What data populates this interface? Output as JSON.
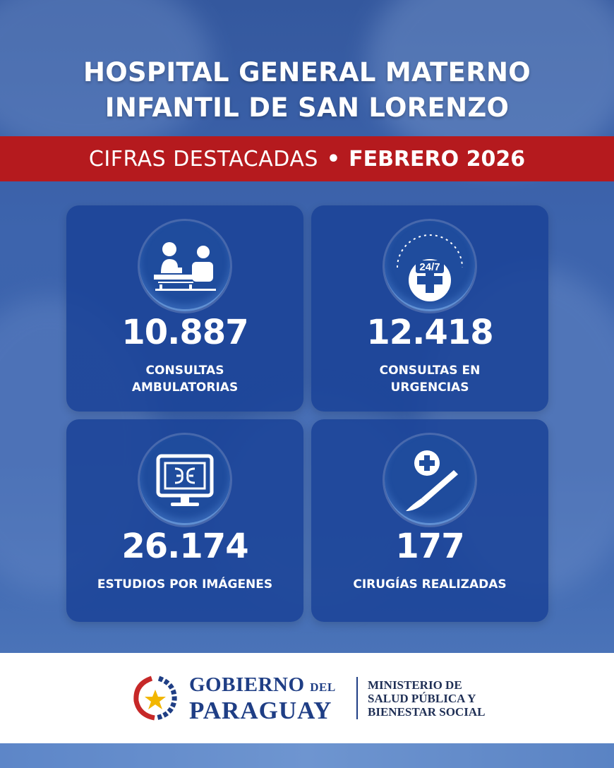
{
  "header": {
    "title_line1": "HOSPITAL GENERAL MATERNO",
    "title_line2": "INFANTIL DE SAN LORENZO"
  },
  "banner": {
    "prefix": "CIFRAS DESTACADAS",
    "separator": "•",
    "period": "FEBRERO 2026"
  },
  "stats": [
    {
      "value": "10.887",
      "label_line1": "CONSULTAS",
      "label_line2": "AMBULATORIAS",
      "icon": "consultation-icon"
    },
    {
      "value": "12.418",
      "label_line1": "CONSULTAS EN",
      "label_line2": "URGENCIAS",
      "icon": "emergency-24-7-icon",
      "icon_text": "24/7"
    },
    {
      "value": "26.174",
      "label_line1": "ESTUDIOS POR IMÁGENES",
      "icon": "imaging-monitor-icon"
    },
    {
      "value": "177",
      "label_line1": "CIRUGÍAS REALIZADAS",
      "icon": "scalpel-icon"
    }
  ],
  "footer": {
    "gob_line1": "GOBIERNO",
    "gob_small": "DEL",
    "gob_line2": "PARAGUAY",
    "ministry_line1": "MINISTERIO DE",
    "ministry_line2": "SALUD PÚBLICA Y",
    "ministry_line3": "BIENESTAR SOCIAL"
  },
  "colors": {
    "background": "#3b63ad",
    "banner": "#b51a1e",
    "card": "#184196",
    "footer_text": "#1f3e85"
  }
}
